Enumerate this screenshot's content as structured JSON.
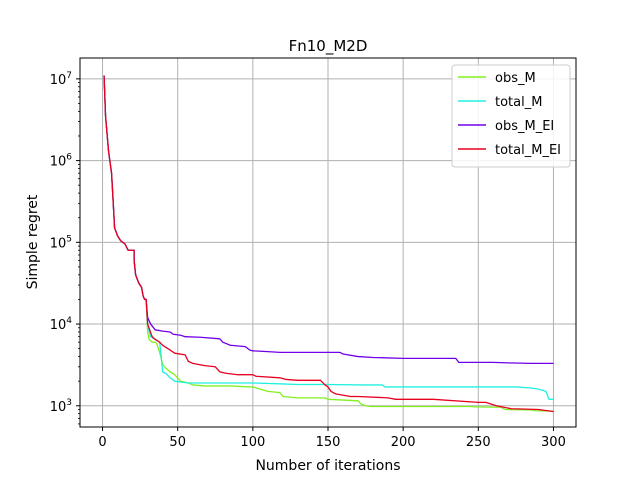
{
  "chart_data": {
    "type": "line",
    "title": "Fn10_M2D",
    "xlabel": "Number of iterations",
    "ylabel": "Simple regret",
    "xlim": [
      -15,
      315
    ],
    "ylim": [
      550,
      18000000
    ],
    "yscale": "log",
    "grid": true,
    "legend_position": "top-right",
    "x_ticks": [
      0,
      50,
      100,
      150,
      200,
      250,
      300
    ],
    "x_tick_labels": [
      "0",
      "50",
      "100",
      "150",
      "200",
      "250",
      "300"
    ],
    "y_ticks": [
      1000,
      10000,
      100000,
      1000000,
      10000000
    ],
    "y_tick_labels": [
      {
        "base": "10",
        "exp": "3"
      },
      {
        "base": "10",
        "exp": "4"
      },
      {
        "base": "10",
        "exp": "5"
      },
      {
        "base": "10",
        "exp": "6"
      },
      {
        "base": "10",
        "exp": "7"
      }
    ],
    "series": [
      {
        "name": "obs_M",
        "color": "#80f020",
        "points": [
          [
            1,
            11000000
          ],
          [
            2,
            3500000
          ],
          [
            4,
            1300000
          ],
          [
            6,
            700000
          ],
          [
            7,
            330000
          ],
          [
            8,
            150000
          ],
          [
            10,
            120000
          ],
          [
            12,
            105000
          ],
          [
            15,
            95000
          ],
          [
            17,
            80000
          ],
          [
            21,
            80000
          ],
          [
            21,
            60000
          ],
          [
            22,
            40000
          ],
          [
            24,
            32000
          ],
          [
            26,
            28000
          ],
          [
            27,
            22000
          ],
          [
            28,
            20000
          ],
          [
            29,
            20000
          ],
          [
            30,
            8000
          ],
          [
            31,
            6500
          ],
          [
            33,
            6000
          ],
          [
            35,
            6000
          ],
          [
            36,
            5800
          ],
          [
            38,
            4500
          ],
          [
            40,
            3200
          ],
          [
            42,
            2900
          ],
          [
            45,
            2600
          ],
          [
            48,
            2400
          ],
          [
            52,
            2000
          ],
          [
            57,
            1900
          ],
          [
            60,
            1800
          ],
          [
            68,
            1750
          ],
          [
            85,
            1750
          ],
          [
            98,
            1700
          ],
          [
            100,
            1700
          ],
          [
            110,
            1500
          ],
          [
            118,
            1450
          ],
          [
            120,
            1300
          ],
          [
            130,
            1250
          ],
          [
            148,
            1250
          ],
          [
            150,
            1200
          ],
          [
            170,
            1150
          ],
          [
            172,
            1050
          ],
          [
            175,
            1000
          ],
          [
            178,
            980
          ],
          [
            200,
            980
          ],
          [
            245,
            980
          ],
          [
            248,
            970
          ],
          [
            265,
            960
          ],
          [
            268,
            900
          ],
          [
            285,
            890
          ],
          [
            288,
            870
          ],
          [
            300,
            860
          ]
        ]
      },
      {
        "name": "total_M",
        "color": "#20f0e0",
        "points": [
          [
            1,
            11000000
          ],
          [
            2,
            3500000
          ],
          [
            4,
            1300000
          ],
          [
            6,
            700000
          ],
          [
            7,
            330000
          ],
          [
            8,
            150000
          ],
          [
            10,
            120000
          ],
          [
            12,
            105000
          ],
          [
            15,
            95000
          ],
          [
            17,
            80000
          ],
          [
            21,
            80000
          ],
          [
            21,
            60000
          ],
          [
            22,
            40000
          ],
          [
            24,
            32000
          ],
          [
            26,
            28000
          ],
          [
            27,
            22000
          ],
          [
            28,
            20000
          ],
          [
            29,
            20000
          ],
          [
            30,
            9500
          ],
          [
            32,
            7000
          ],
          [
            35,
            6500
          ],
          [
            38,
            6000
          ],
          [
            39,
            4000
          ],
          [
            40,
            2600
          ],
          [
            42,
            2500
          ],
          [
            45,
            2200
          ],
          [
            48,
            2000
          ],
          [
            57,
            1900
          ],
          [
            85,
            1900
          ],
          [
            100,
            1900
          ],
          [
            120,
            1850
          ],
          [
            130,
            1820
          ],
          [
            150,
            1820
          ],
          [
            172,
            1800
          ],
          [
            186,
            1800
          ],
          [
            188,
            1700
          ],
          [
            250,
            1700
          ],
          [
            260,
            1700
          ],
          [
            275,
            1700
          ],
          [
            285,
            1650
          ],
          [
            290,
            1600
          ],
          [
            295,
            1500
          ],
          [
            297,
            1200
          ],
          [
            300,
            1200
          ]
        ]
      },
      {
        "name": "obs_M_EI",
        "color": "#7000e8",
        "points": [
          [
            1,
            11000000
          ],
          [
            2,
            3500000
          ],
          [
            4,
            1300000
          ],
          [
            6,
            700000
          ],
          [
            7,
            330000
          ],
          [
            8,
            150000
          ],
          [
            10,
            120000
          ],
          [
            12,
            105000
          ],
          [
            15,
            95000
          ],
          [
            17,
            80000
          ],
          [
            21,
            80000
          ],
          [
            21,
            60000
          ],
          [
            22,
            40000
          ],
          [
            24,
            32000
          ],
          [
            26,
            28000
          ],
          [
            27,
            22000
          ],
          [
            28,
            20000
          ],
          [
            29,
            20000
          ],
          [
            30,
            12000
          ],
          [
            32,
            10000
          ],
          [
            35,
            8500
          ],
          [
            40,
            8200
          ],
          [
            45,
            8000
          ],
          [
            47,
            7500
          ],
          [
            52,
            7300
          ],
          [
            55,
            7000
          ],
          [
            65,
            6900
          ],
          [
            78,
            6600
          ],
          [
            80,
            6000
          ],
          [
            85,
            5500
          ],
          [
            95,
            5300
          ],
          [
            98,
            4800
          ],
          [
            100,
            4700
          ],
          [
            110,
            4600
          ],
          [
            118,
            4500
          ],
          [
            135,
            4500
          ],
          [
            158,
            4500
          ],
          [
            160,
            4300
          ],
          [
            170,
            4000
          ],
          [
            180,
            3900
          ],
          [
            200,
            3800
          ],
          [
            235,
            3800
          ],
          [
            237,
            3400
          ],
          [
            260,
            3400
          ],
          [
            270,
            3350
          ],
          [
            285,
            3300
          ],
          [
            300,
            3300
          ]
        ]
      },
      {
        "name": "total_M_EI",
        "color": "#e80020",
        "points": [
          [
            1,
            11000000
          ],
          [
            2,
            3500000
          ],
          [
            4,
            1300000
          ],
          [
            6,
            700000
          ],
          [
            7,
            330000
          ],
          [
            8,
            150000
          ],
          [
            10,
            120000
          ],
          [
            12,
            105000
          ],
          [
            15,
            95000
          ],
          [
            17,
            80000
          ],
          [
            21,
            80000
          ],
          [
            21,
            60000
          ],
          [
            22,
            40000
          ],
          [
            24,
            32000
          ],
          [
            26,
            28000
          ],
          [
            27,
            22000
          ],
          [
            28,
            20000
          ],
          [
            29,
            20000
          ],
          [
            30,
            10000
          ],
          [
            33,
            7000
          ],
          [
            35,
            6500
          ],
          [
            38,
            6000
          ],
          [
            40,
            5500
          ],
          [
            45,
            4800
          ],
          [
            48,
            4400
          ],
          [
            55,
            4200
          ],
          [
            57,
            3500
          ],
          [
            60,
            3300
          ],
          [
            68,
            3100
          ],
          [
            75,
            3000
          ],
          [
            78,
            2600
          ],
          [
            82,
            2500
          ],
          [
            90,
            2400
          ],
          [
            100,
            2400
          ],
          [
            102,
            2300
          ],
          [
            118,
            2200
          ],
          [
            122,
            2100
          ],
          [
            130,
            2050
          ],
          [
            145,
            2050
          ],
          [
            148,
            1800
          ],
          [
            150,
            1700
          ],
          [
            152,
            1500
          ],
          [
            155,
            1400
          ],
          [
            165,
            1300
          ],
          [
            170,
            1300
          ],
          [
            190,
            1250
          ],
          [
            195,
            1200
          ],
          [
            220,
            1200
          ],
          [
            250,
            1100
          ],
          [
            255,
            1100
          ],
          [
            262,
            1000
          ],
          [
            272,
            920
          ],
          [
            282,
            910
          ],
          [
            290,
            900
          ],
          [
            298,
            860
          ],
          [
            300,
            850
          ]
        ]
      }
    ]
  }
}
